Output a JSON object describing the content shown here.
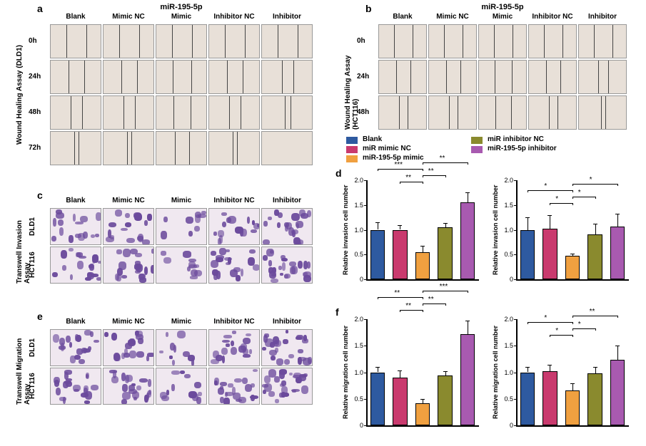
{
  "mirna": "miR-195-5p",
  "columns": [
    "Blank",
    "Mimic NC",
    "Mimic",
    "Inhibitor NC",
    "Inhibitor"
  ],
  "panel_a": {
    "label": "a",
    "axis_title": "Wound Healing Assay (DLD1)",
    "rows": [
      "0h",
      "24h",
      "48h",
      "72h"
    ],
    "scratch_widths": {
      "0h": [
        0.38,
        0.38,
        0.38,
        0.38,
        0.38
      ],
      "24h": [
        0.3,
        0.3,
        0.36,
        0.3,
        0.22
      ],
      "48h": [
        0.22,
        0.22,
        0.33,
        0.22,
        0.12
      ],
      "72h": [
        0.08,
        0.08,
        0.28,
        0.08,
        0.02
      ]
    },
    "cell_bg": "#e8e0d8"
  },
  "panel_b": {
    "label": "b",
    "axis_title": "Wound Healing Assay (HCT116)",
    "rows": [
      "0h",
      "24h",
      "48h"
    ],
    "scratch_widths": {
      "0h": [
        0.38,
        0.38,
        0.38,
        0.38,
        0.38
      ],
      "24h": [
        0.28,
        0.28,
        0.35,
        0.28,
        0.2
      ],
      "48h": [
        0.18,
        0.18,
        0.32,
        0.18,
        0.08
      ]
    },
    "cell_bg": "#e8e0d8"
  },
  "panel_c": {
    "label": "c",
    "axis_title": "Transwell Invasion Assay",
    "rows": [
      "DLD1",
      "HCT116"
    ],
    "densities": {
      "DLD1": [
        0.45,
        0.45,
        0.25,
        0.45,
        0.6
      ],
      "HCT116": [
        0.55,
        0.55,
        0.3,
        0.55,
        0.7
      ]
    }
  },
  "panel_e": {
    "label": "e",
    "axis_title": "Transwell Migration Assay",
    "rows": [
      "DLD1",
      "HCT116"
    ],
    "densities": {
      "DLD1": [
        0.5,
        0.5,
        0.28,
        0.5,
        0.7
      ],
      "HCT116": [
        0.6,
        0.6,
        0.35,
        0.6,
        0.75
      ]
    }
  },
  "legend": {
    "items": [
      {
        "label": "Blank",
        "color": "#2e5aa0"
      },
      {
        "label": "miR mimic NC",
        "color": "#c93a6e"
      },
      {
        "label": "miR-195-5p mimic",
        "color": "#f0a040"
      },
      {
        "label": "miR inhibitor NC",
        "color": "#8a8a2e"
      },
      {
        "label": "miR-195-5p inhibitor",
        "color": "#a85ab0"
      }
    ]
  },
  "panel_d": {
    "label": "d",
    "ylabel": "Relative invasion cell number",
    "ylim": [
      0,
      2.0
    ],
    "ytick_step": 0.5,
    "yticks": [
      "0",
      "0.5",
      "1.0",
      "1.5",
      "2.0"
    ],
    "chart_left": {
      "values": [
        1.0,
        1.0,
        0.54,
        1.05,
        1.56
      ],
      "errors": [
        0.15,
        0.1,
        0.13,
        0.08,
        0.2
      ],
      "sigs": [
        {
          "from": 0,
          "to": 2,
          "level": 3,
          "stars": "***"
        },
        {
          "from": 1,
          "to": 2,
          "level": 1,
          "stars": "**"
        },
        {
          "from": 2,
          "to": 3,
          "level": 2,
          "stars": "**"
        },
        {
          "from": 2,
          "to": 4,
          "level": 4,
          "stars": "**"
        }
      ]
    },
    "chart_right": {
      "values": [
        1.0,
        1.02,
        0.48,
        0.9,
        1.06
      ],
      "errors": [
        0.25,
        0.28,
        0.04,
        0.22,
        0.26
      ],
      "sigs": [
        {
          "from": 0,
          "to": 2,
          "level": 3,
          "stars": "*"
        },
        {
          "from": 1,
          "to": 2,
          "level": 1,
          "stars": "*"
        },
        {
          "from": 2,
          "to": 3,
          "level": 2,
          "stars": "*"
        },
        {
          "from": 2,
          "to": 4,
          "level": 4,
          "stars": "*"
        }
      ]
    }
  },
  "panel_f": {
    "label": "f",
    "ylabel": "Relative migration cell number",
    "ylim": [
      0,
      2.0
    ],
    "ytick_step": 0.5,
    "yticks": [
      "0",
      "0.5",
      "1.0",
      "1.5",
      "2.0"
    ],
    "chart_left": {
      "values": [
        1.0,
        0.9,
        0.41,
        0.94,
        1.72
      ],
      "errors": [
        0.1,
        0.14,
        0.09,
        0.08,
        0.25
      ],
      "sigs": [
        {
          "from": 0,
          "to": 2,
          "level": 3,
          "stars": "**"
        },
        {
          "from": 1,
          "to": 2,
          "level": 1,
          "stars": "**"
        },
        {
          "from": 2,
          "to": 3,
          "level": 2,
          "stars": "**"
        },
        {
          "from": 2,
          "to": 4,
          "level": 4,
          "stars": "***"
        }
      ]
    },
    "chart_right": {
      "values": [
        1.0,
        1.02,
        0.66,
        0.98,
        1.23
      ],
      "errors": [
        0.1,
        0.12,
        0.13,
        0.12,
        0.28
      ],
      "sigs": [
        {
          "from": 0,
          "to": 2,
          "level": 3,
          "stars": "*"
        },
        {
          "from": 1,
          "to": 2,
          "level": 1,
          "stars": "*"
        },
        {
          "from": 2,
          "to": 3,
          "level": 2,
          "stars": "*"
        },
        {
          "from": 2,
          "to": 4,
          "level": 4,
          "stars": "**"
        }
      ]
    }
  },
  "colors": {
    "stain": "#6b4a9c",
    "wound_bg": "#e8e0d8",
    "stain_bg": "#f0e8f0",
    "axis": "#000000"
  }
}
